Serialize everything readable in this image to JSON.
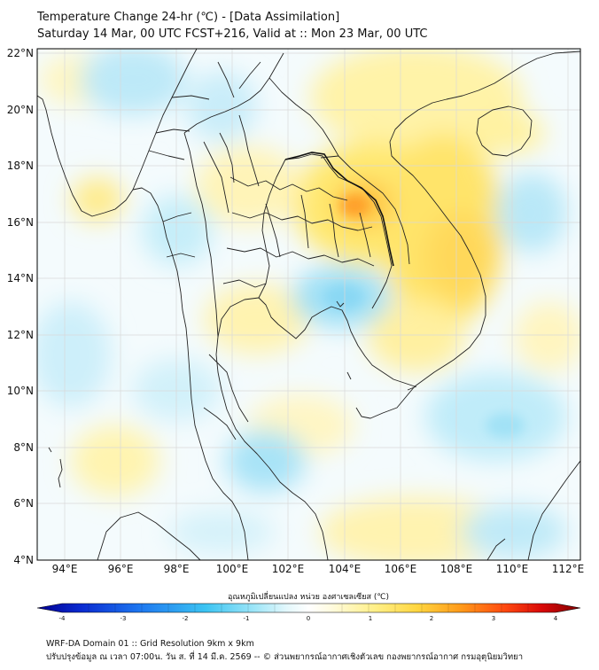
{
  "header": {
    "title": "Temperature Change 24-hr (℃) - [Data Assimilation]",
    "subtitle": "Saturday 14 Mar, 00 UTC FCST+216, Valid at :: Mon 23 Mar, 00 UTC"
  },
  "map": {
    "lat_labels": [
      "22°N",
      "20°N",
      "18°N",
      "16°N",
      "14°N",
      "12°N",
      "10°N",
      "8°N",
      "6°N",
      "4°N"
    ],
    "lon_labels": [
      "94°E",
      "96°E",
      "98°E",
      "100°E",
      "102°E",
      "104°E",
      "106°E",
      "108°E",
      "110°E",
      "112°E"
    ],
    "field": "24-hr temperature change",
    "highlights": [
      {
        "region": "central Laos / northeast Thailand",
        "value": 1.8
      },
      {
        "region": "Gulf of Thailand interior",
        "value": -0.6
      },
      {
        "region": "Hainan",
        "value": 0.9
      },
      {
        "region": "South China Sea east",
        "value": -0.7
      }
    ]
  },
  "colorbar": {
    "label": "อุณหภูมิเปลี่ยนแปลง หน่วย องศาเซลเซียส (℃)",
    "ticks": [
      "-4",
      "-3",
      "-2",
      "-1",
      "0",
      "1",
      "2",
      "3",
      "4"
    ],
    "min": -4,
    "max": 4
  },
  "footer": {
    "line1": "WRF-DA Domain 01 :: Grid Resolution 9km x 9km",
    "line2": "ปรับปรุงข้อมูล ณ เวลา 07:00น. วัน ส. ที่ 14 มี.ค. 2569 -- © ส่วนพยากรณ์อากาศเชิงตัวเลข กองพยากรณ์อากาศ กรมอุตุนิยมวิทยา"
  },
  "colors": {
    "cold_deep": "#000090",
    "neutral": "#ffffff",
    "warm_deep": "#800000",
    "cyan": "#5ad2f0",
    "yellow": "#ffe44a"
  }
}
